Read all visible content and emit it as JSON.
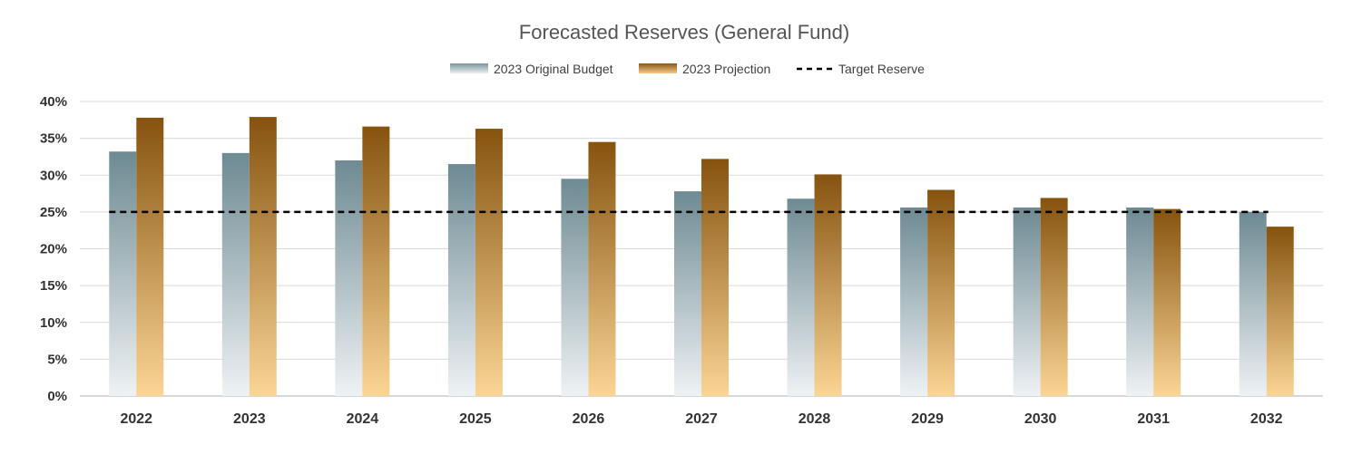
{
  "chart_data": {
    "type": "bar",
    "title": "Forecasted Reserves (General Fund)",
    "xlabel": "",
    "ylabel": "",
    "categories": [
      "2022",
      "2023",
      "2024",
      "2025",
      "2026",
      "2027",
      "2028",
      "2029",
      "2030",
      "2031",
      "2032"
    ],
    "series": [
      {
        "name": "2023 Original Budget",
        "values": [
          33.2,
          33.0,
          32.0,
          31.5,
          29.5,
          27.8,
          26.8,
          25.6,
          25.6,
          25.6,
          25.0
        ],
        "color_top": "#6e8a93",
        "color_bottom": "#eef2f4"
      },
      {
        "name": "2023 Projection",
        "values": [
          37.8,
          37.9,
          36.6,
          36.3,
          34.5,
          32.2,
          30.1,
          28.0,
          26.9,
          25.4,
          23.0
        ],
        "color_top": "#86530f",
        "color_bottom": "#fbd595"
      }
    ],
    "reference_line": {
      "name": "Target Reserve",
      "value": 25,
      "style": "dashed",
      "color": "#000000"
    },
    "y_ticks": [
      "0%",
      "5%",
      "10%",
      "15%",
      "20%",
      "25%",
      "30%",
      "35%",
      "40%"
    ],
    "ylim": [
      0,
      40
    ],
    "grid": true,
    "legend": "top-center"
  }
}
